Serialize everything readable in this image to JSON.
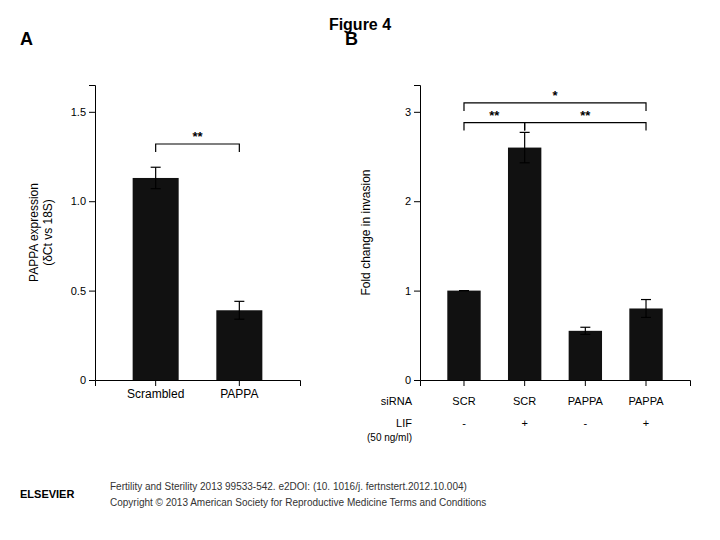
{
  "title": "Figure 4",
  "footer": [
    "Fertility and  Sterility 2013 99533-542. e2DOI: (10. 1016/j. fertnstert.2012.10.004)",
    "Copyright © 2013 American Society for Reproductive Medicine  Terms and Conditions"
  ],
  "logo": "ELSEVIER",
  "chart_data": [
    {
      "type": "bar",
      "title": "A",
      "color": "#111111",
      "categories": [
        "Scrambled",
        "PAPPA"
      ],
      "values": [
        1.13,
        0.39
      ],
      "errors": [
        0.06,
        0.05
      ],
      "ylabel": "PAPPA expression\n(δCt vs 18S)",
      "ylim": [
        0,
        1.65
      ],
      "yticks": [
        0,
        0.5,
        {
          "value": 1.0,
          "label": "1.0"
        },
        1.5
      ],
      "annotations": [
        {
          "text": "**",
          "x1": 0,
          "x2": 1,
          "y": 1.32
        }
      ]
    },
    {
      "type": "bar",
      "title": "B",
      "color": "#111111",
      "categories": [
        null,
        null,
        null,
        null
      ],
      "values": [
        1.0,
        2.6,
        0.55,
        0.8
      ],
      "errors": [
        0.0,
        0.17,
        0.04,
        0.1
      ],
      "ylabel": "Fold change in invasion",
      "ylim": [
        0,
        3.3
      ],
      "yticks": [
        0,
        1,
        2,
        3
      ],
      "rows": [
        {
          "label": "siRNA",
          "values": [
            "SCR",
            "SCR",
            "PAPPA",
            "PAPPA"
          ]
        },
        {
          "label": "LIF",
          "sublabel": "(50 ng/ml)",
          "values": [
            "-",
            "+",
            "-",
            "+"
          ]
        }
      ],
      "annotations": [
        {
          "text": "**",
          "x1": 0,
          "x2": 1,
          "y": 2.88
        },
        {
          "text": "**",
          "x1": 1,
          "x2": 3,
          "y": 2.88
        },
        {
          "text": "*",
          "x1": 0,
          "x2": 3,
          "y": 3.1
        }
      ]
    }
  ]
}
